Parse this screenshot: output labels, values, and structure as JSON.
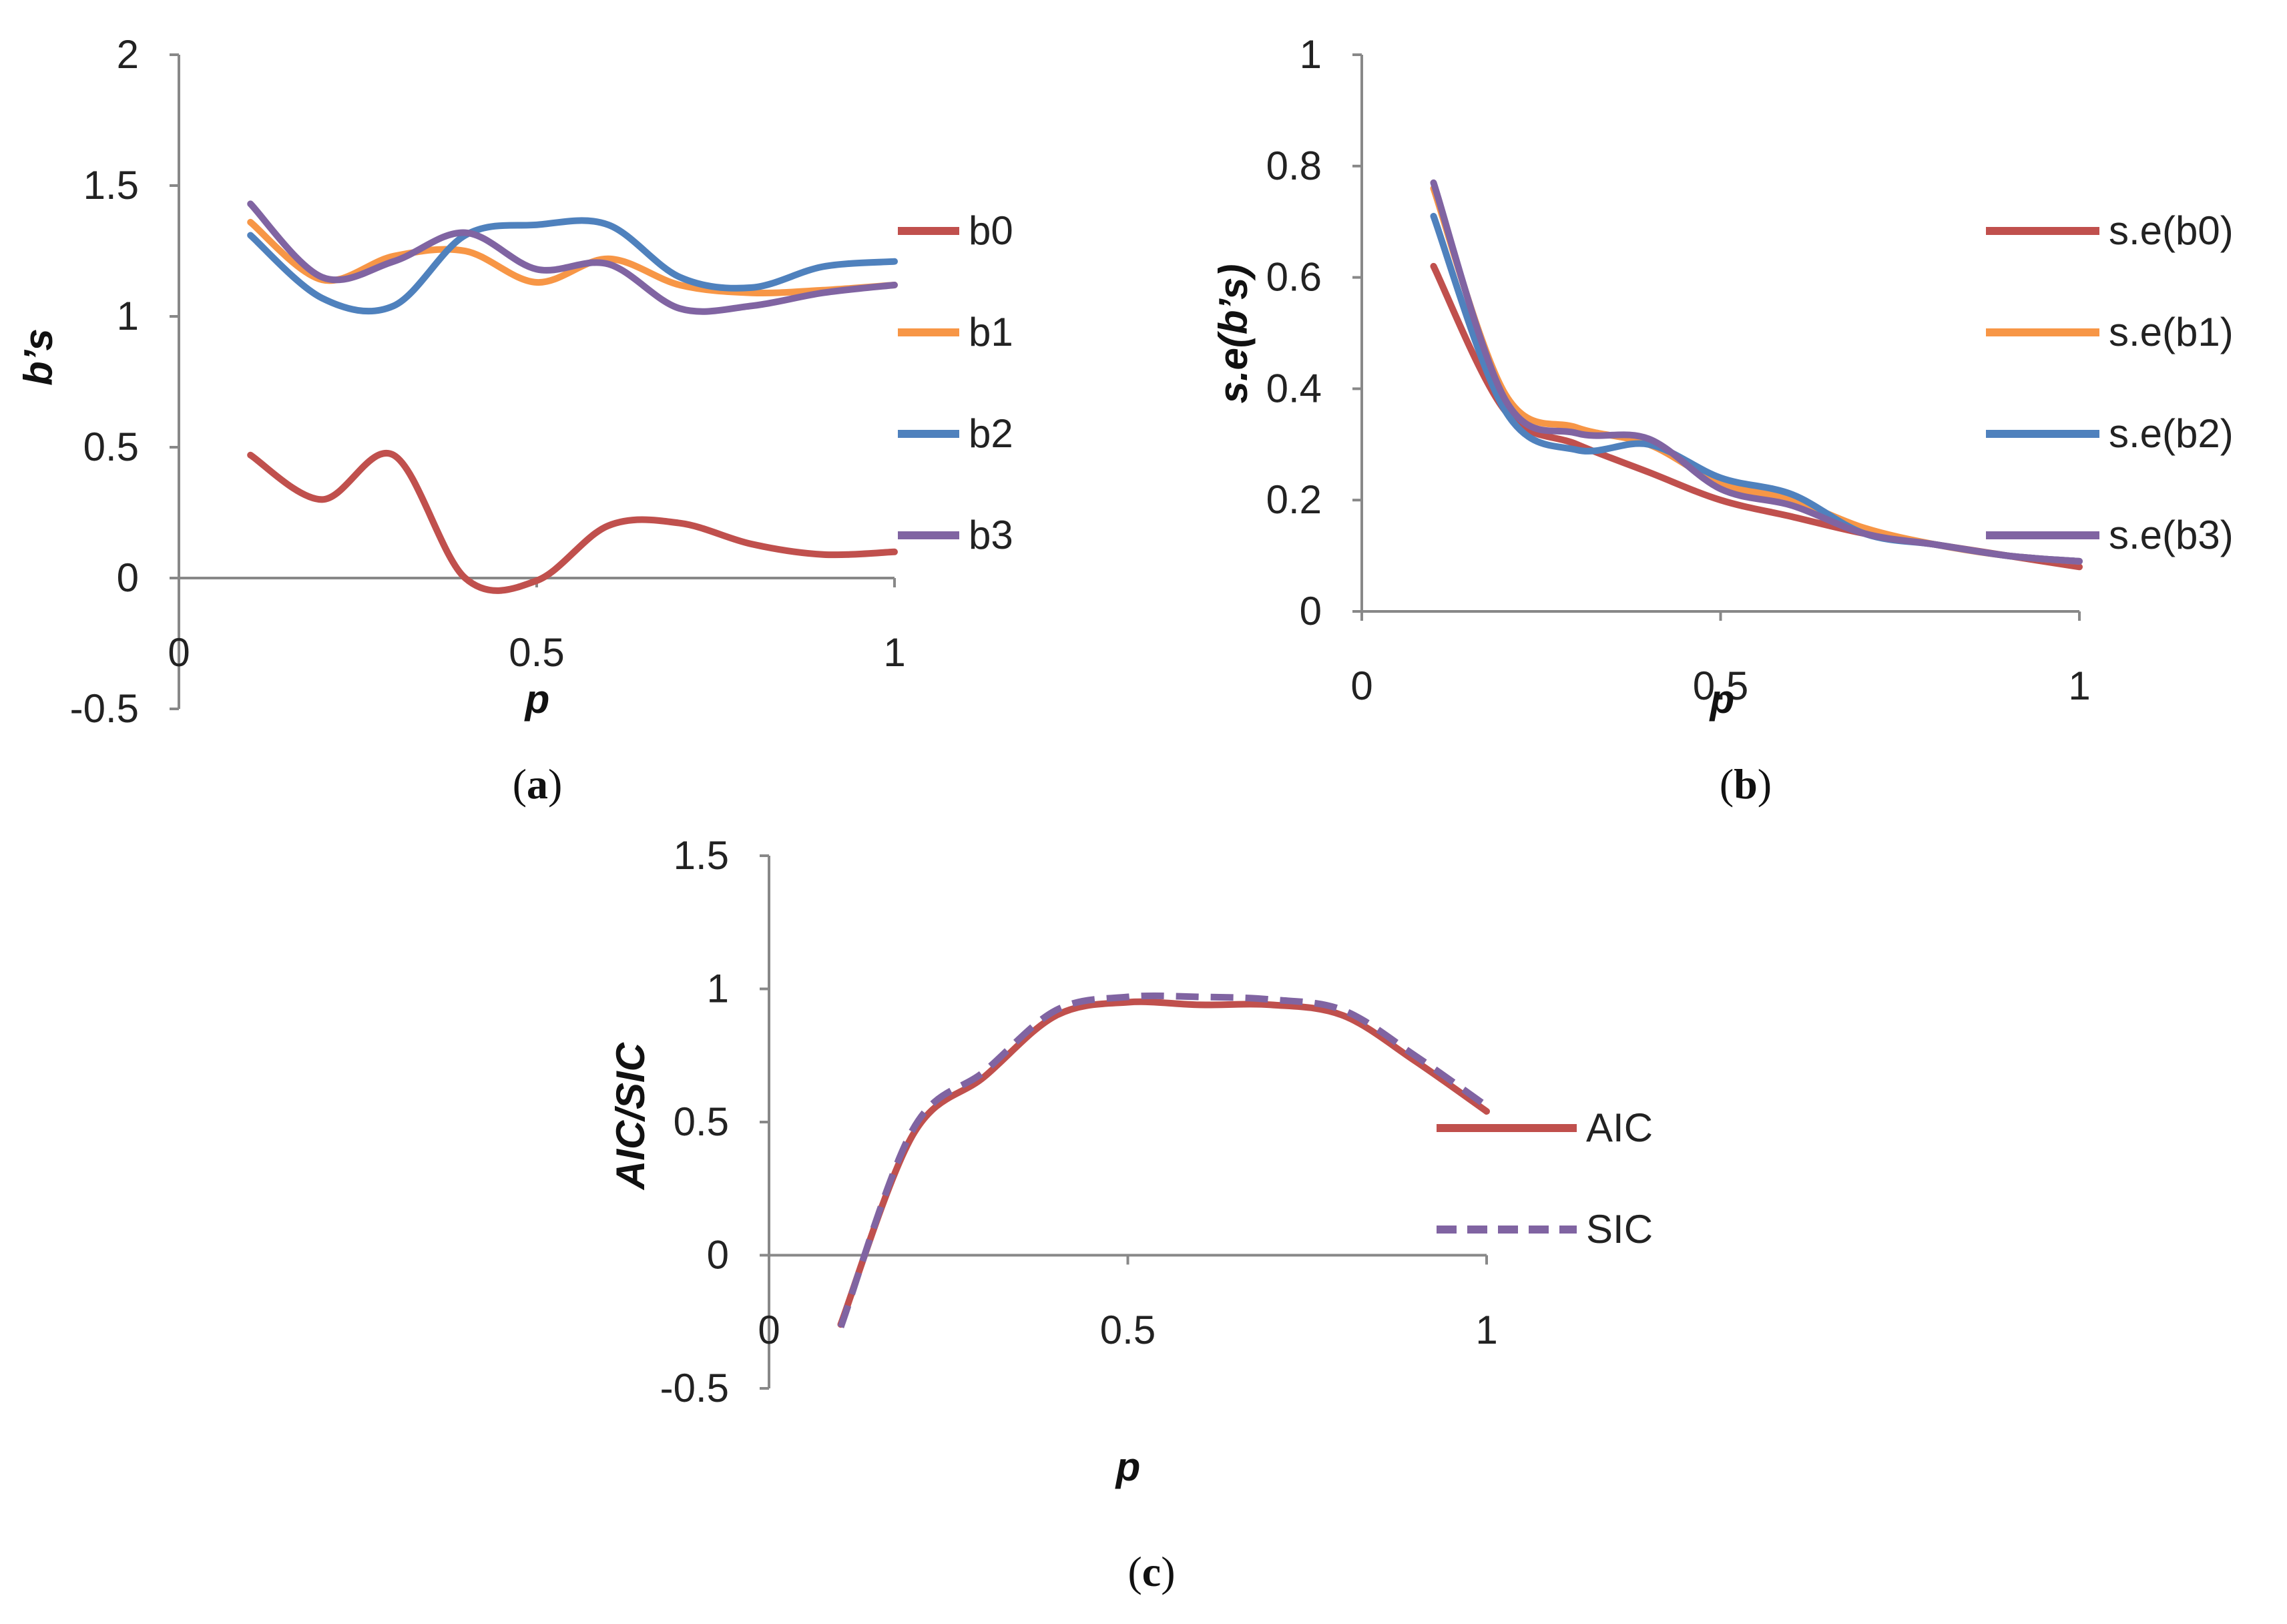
{
  "chart_data": [
    {
      "type": "line",
      "panel_label": "a",
      "title": "",
      "xlabel": "p",
      "ylabel": "b’s",
      "xlim": [
        0,
        1
      ],
      "ylim": [
        -0.5,
        2
      ],
      "x_ticks": [
        0,
        0.5,
        1
      ],
      "y_ticks": [
        -0.5,
        0,
        0.5,
        1,
        1.5,
        2
      ],
      "grid": false,
      "legend_position": "right",
      "x": [
        0.1,
        0.2,
        0.3,
        0.4,
        0.5,
        0.6,
        0.7,
        0.8,
        0.9,
        1.0
      ],
      "series": [
        {
          "name": "b0",
          "color": "#c0504d",
          "values": [
            0.47,
            0.3,
            0.47,
            0.0,
            -0.01,
            0.2,
            0.21,
            0.13,
            0.09,
            0.1
          ]
        },
        {
          "name": "b1",
          "color": "#f79646",
          "values": [
            1.36,
            1.14,
            1.23,
            1.25,
            1.13,
            1.22,
            1.12,
            1.09,
            1.1,
            1.12
          ]
        },
        {
          "name": "b2",
          "color": "#4f81bd",
          "values": [
            1.31,
            1.07,
            1.04,
            1.31,
            1.35,
            1.35,
            1.15,
            1.11,
            1.19,
            1.21
          ]
        },
        {
          "name": "b3",
          "color": "#8064a2",
          "values": [
            1.43,
            1.15,
            1.21,
            1.32,
            1.18,
            1.2,
            1.03,
            1.04,
            1.09,
            1.12
          ]
        }
      ]
    },
    {
      "type": "line",
      "panel_label": "b",
      "title": "",
      "xlabel": "p",
      "ylabel": "s.e(b’s)",
      "xlim": [
        0,
        1
      ],
      "ylim": [
        0,
        1
      ],
      "x_ticks": [
        0,
        0.5,
        1
      ],
      "y_ticks": [
        0,
        0.2,
        0.4,
        0.6,
        0.8,
        1
      ],
      "grid": false,
      "legend_position": "right",
      "x": [
        0.1,
        0.2,
        0.3,
        0.4,
        0.5,
        0.6,
        0.7,
        0.8,
        0.9,
        1.0
      ],
      "series": [
        {
          "name": "s.e(b0)",
          "color": "#c0504d",
          "values": [
            0.62,
            0.36,
            0.3,
            0.25,
            0.2,
            0.17,
            0.14,
            0.12,
            0.1,
            0.08
          ]
        },
        {
          "name": "s.e(b1)",
          "color": "#f79646",
          "values": [
            0.76,
            0.39,
            0.33,
            0.3,
            0.23,
            0.2,
            0.15,
            0.12,
            0.1,
            0.09
          ]
        },
        {
          "name": "s.e(b2)",
          "color": "#4f81bd",
          "values": [
            0.71,
            0.36,
            0.29,
            0.3,
            0.24,
            0.21,
            0.14,
            0.12,
            0.1,
            0.09
          ]
        },
        {
          "name": "s.e(b3)",
          "color": "#8064a2",
          "values": [
            0.77,
            0.38,
            0.32,
            0.31,
            0.22,
            0.19,
            0.14,
            0.12,
            0.1,
            0.09
          ]
        }
      ]
    },
    {
      "type": "line",
      "panel_label": "c",
      "title": "",
      "xlabel": "p",
      "ylabel": "AIC/SIC",
      "xlim": [
        0,
        1
      ],
      "ylim": [
        -0.5,
        1.5
      ],
      "x_ticks": [
        0,
        0.5,
        1
      ],
      "y_ticks": [
        -0.5,
        0,
        0.5,
        1,
        1.5
      ],
      "grid": false,
      "legend_position": "right",
      "x": [
        0.1,
        0.2,
        0.3,
        0.4,
        0.5,
        0.6,
        0.7,
        0.8,
        0.9,
        1.0
      ],
      "series": [
        {
          "name": "AIC",
          "color": "#c0504d",
          "dash": false,
          "values": [
            -0.26,
            0.45,
            0.67,
            0.9,
            0.95,
            0.94,
            0.94,
            0.9,
            0.73,
            0.54
          ]
        },
        {
          "name": "SIC",
          "color": "#8064a2",
          "dash": true,
          "values": [
            -0.27,
            0.47,
            0.69,
            0.92,
            0.97,
            0.97,
            0.96,
            0.92,
            0.75,
            0.56
          ]
        }
      ]
    }
  ]
}
